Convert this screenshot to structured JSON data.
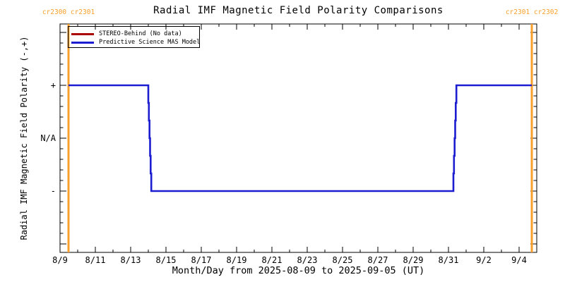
{
  "title": "Radial IMF Magnetic Field Polarity Comparisons",
  "annotations": {
    "top_left": "cr2300 cr2301",
    "top_right": "cr2301 cr2302"
  },
  "colors": {
    "boundary_orange": "#f8a02c",
    "stereo_red": "#aa0000",
    "mas_blue": "#1c1cd0",
    "axis_black": "#000000"
  },
  "legend": {
    "items": [
      {
        "label": "STEREO-Behind (No data)",
        "color": "#aa0000"
      },
      {
        "label": "Predictive Science MAS Model",
        "color": "#1c1cd0"
      }
    ]
  },
  "chart_data": {
    "type": "line",
    "title": "Radial IMF Magnetic Field Polarity Comparisons",
    "xlabel": "Month/Day from 2025-08-09 to 2025-09-05 (UT)",
    "ylabel": "Radial IMF Magnetic Field Polarity (-,+)",
    "x_start_date": "2025-08-09",
    "x_end_date": "2025-09-05",
    "xlim_days": [
      0,
      27
    ],
    "ylim": [
      -2.16,
      2.16
    ],
    "grid": false,
    "legend_position": "top-left",
    "x_major_tick_days": [
      0,
      2,
      4,
      6,
      8,
      10,
      12,
      14,
      16,
      18,
      20,
      22,
      24,
      26
    ],
    "x_tick_labels": [
      "8/9",
      "8/11",
      "8/13",
      "8/15",
      "8/17",
      "8/19",
      "8/21",
      "8/23",
      "8/25",
      "8/27",
      "8/29",
      "8/31",
      "9/2",
      "9/4"
    ],
    "x_minor_tick_step_days": 1,
    "y_major_ticks": [
      -2,
      -1,
      0,
      1,
      2
    ],
    "y_minor_tick_step": 0.2,
    "y_labeled_ticks": [
      {
        "value": 1,
        "label": "+"
      },
      {
        "value": 0,
        "label": "N/A"
      },
      {
        "value": -1,
        "label": "-"
      }
    ],
    "series": [
      {
        "name": "STEREO-Behind (No data)",
        "color": "#aa0000",
        "x": [],
        "y": []
      },
      {
        "name": "Predictive Science MAS Model",
        "color": "#1c1cd0",
        "x": [
          0.48,
          5.0,
          5.2,
          22.28,
          22.48,
          26.72
        ],
        "y": [
          1,
          1,
          -1,
          -1,
          1,
          1
        ]
      }
    ],
    "carrington_boundaries": [
      {
        "x_day": 0.48,
        "left_label": "cr2300",
        "right_label": "cr2301"
      },
      {
        "x_day": 26.72,
        "left_label": "cr2301",
        "right_label": "cr2302"
      }
    ]
  }
}
